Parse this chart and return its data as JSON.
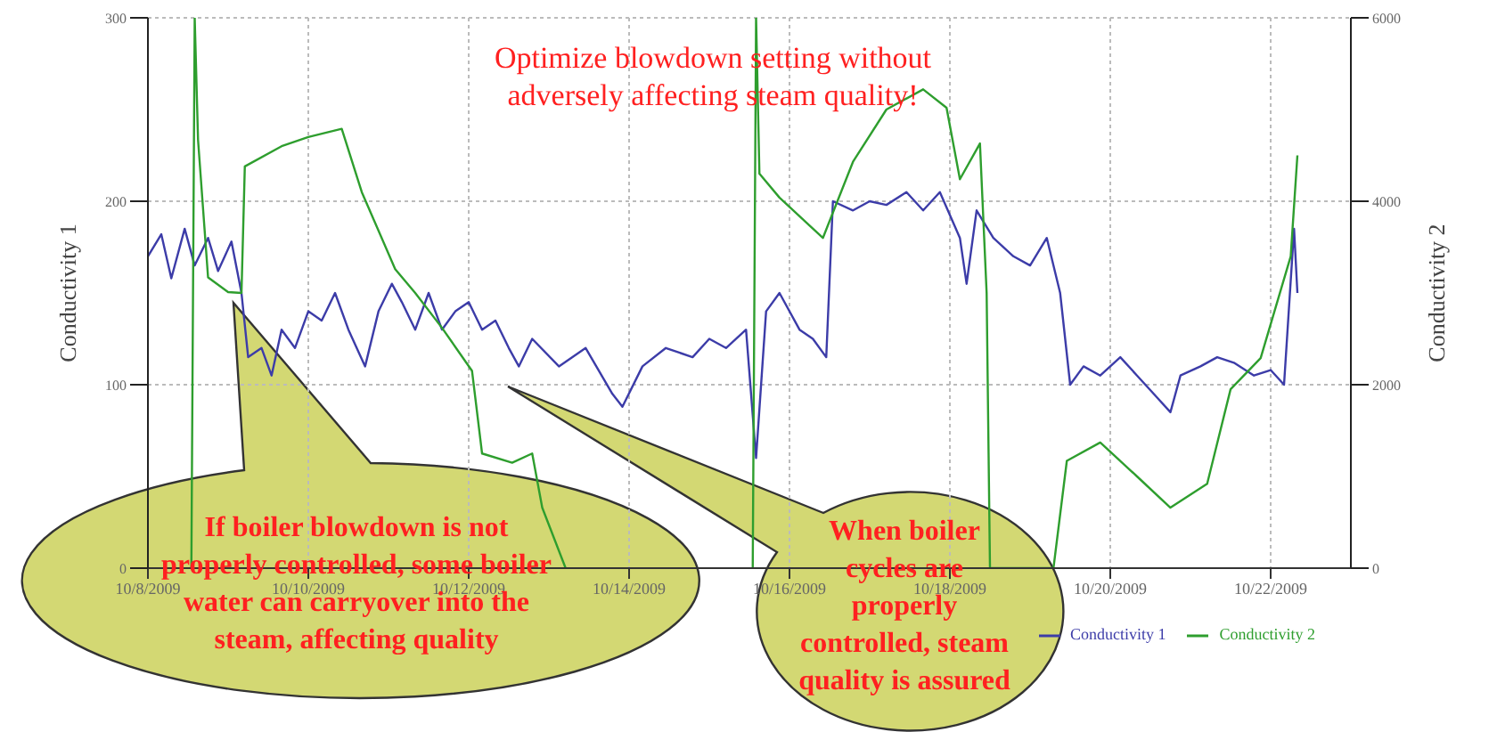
{
  "chart_data": {
    "type": "line",
    "annotations": [
      "Optimize blowdown setting without adversely affecting steam quality!",
      "If boiler blowdown is not properly controlled, some boiler water can carryover into the steam, affecting quality",
      "When boiler cycles are properly controlled, steam quality is assured"
    ],
    "ylabel": "Conductivity 1",
    "y2label": "Conductivity 2",
    "xlim": [
      "2009-10-08",
      "2009-10-23"
    ],
    "xticks": [
      {
        "value": "2009-10-08",
        "label": "10/8/2009"
      },
      {
        "value": "2009-10-10",
        "label": "10/10/2009"
      },
      {
        "value": "2009-10-12",
        "label": "10/12/2009"
      },
      {
        "value": "2009-10-14",
        "label": "10/14/2009"
      },
      {
        "value": "2009-10-16",
        "label": "10/16/2009"
      },
      {
        "value": "2009-10-18",
        "label": "10/18/2009"
      },
      {
        "value": "2009-10-20",
        "label": "10/20/2009"
      },
      {
        "value": "2009-10-22",
        "label": "10/22/2009"
      }
    ],
    "ylim": [
      0,
      300
    ],
    "yticks": [
      0,
      100,
      200,
      300
    ],
    "y2lim": [
      0,
      6000
    ],
    "y2ticks": [
      0,
      2000,
      4000,
      6000
    ],
    "grid": true,
    "legend": "bottom right",
    "series": [
      {
        "name": "Conductivity 1",
        "color": "#3c3ca8",
        "x": [
          "2009-10-08T00:00",
          "2009-10-08T04:00",
          "2009-10-08T07:00",
          "2009-10-08T11:00",
          "2009-10-08T14:00",
          "2009-10-08T18:00",
          "2009-10-08T21:00",
          "2009-10-09T01:00",
          "2009-10-09T04:00",
          "2009-10-09T06:00",
          "2009-10-09T10:00",
          "2009-10-09T13:00",
          "2009-10-09T16:00",
          "2009-10-09T20:00",
          "2009-10-10T00:00",
          "2009-10-10T04:00",
          "2009-10-10T08:00",
          "2009-10-10T12:00",
          "2009-10-10T15:00",
          "2009-10-10T17:00",
          "2009-10-10T21:00",
          "2009-10-11T01:00",
          "2009-10-11T04:00",
          "2009-10-11T08:00",
          "2009-10-11T12:00",
          "2009-10-11T16:00",
          "2009-10-11T20:00",
          "2009-10-12T00:00",
          "2009-10-12T04:00",
          "2009-10-12T08:00",
          "2009-10-12T12:00",
          "2009-10-12T15:00",
          "2009-10-12T19:00",
          "2009-10-13T03:00",
          "2009-10-13T11:00",
          "2009-10-13T19:00",
          "2009-10-13T22:00",
          "2009-10-14T04:00",
          "2009-10-14T11:00",
          "2009-10-14T19:00",
          "2009-10-15T00:00",
          "2009-10-15T05:00",
          "2009-10-15T11:00",
          "2009-10-15T14:00",
          "2009-10-15T17:00",
          "2009-10-15T21:00",
          "2009-10-16T03:00",
          "2009-10-16T07:00",
          "2009-10-16T11:00",
          "2009-10-16T13:00",
          "2009-10-16T19:00",
          "2009-10-17T00:00",
          "2009-10-17T05:00",
          "2009-10-17T11:00",
          "2009-10-17T16:00",
          "2009-10-17T21:00",
          "2009-10-18T03:00",
          "2009-10-18T05:00",
          "2009-10-18T08:00",
          "2009-10-18T13:00",
          "2009-10-18T19:00",
          "2009-10-19T00:00",
          "2009-10-19T05:00",
          "2009-10-19T09:00",
          "2009-10-19T12:00",
          "2009-10-19T16:00",
          "2009-10-19T21:00",
          "2009-10-20T03:00",
          "2009-10-20T08:00",
          "2009-10-20T13:00",
          "2009-10-20T18:00",
          "2009-10-20T21:00",
          "2009-10-21T03:00",
          "2009-10-21T08:00",
          "2009-10-21T13:00",
          "2009-10-21T19:00",
          "2009-10-22T00:00",
          "2009-10-22T04:00",
          "2009-10-22T07:00",
          "2009-10-22T08:00"
        ],
        "values": [
          170,
          182,
          158,
          185,
          165,
          180,
          162,
          178,
          150,
          115,
          120,
          105,
          130,
          120,
          140,
          135,
          150,
          130,
          118,
          110,
          140,
          155,
          145,
          130,
          150,
          130,
          140,
          145,
          130,
          135,
          120,
          110,
          125,
          110,
          120,
          95,
          88,
          110,
          120,
          115,
          125,
          120,
          130,
          60,
          140,
          150,
          130,
          125,
          115,
          200,
          195,
          200,
          198,
          205,
          195,
          205,
          180,
          155,
          195,
          180,
          170,
          165,
          180,
          150,
          100,
          110,
          105,
          115,
          105,
          95,
          85,
          105,
          110,
          115,
          112,
          105,
          108,
          100,
          185,
          150
        ]
      },
      {
        "name": "Conductivity 2",
        "color": "#2e9e2e",
        "axis": "y2",
        "x": [
          "2009-10-08T13:00",
          "2009-10-08T14:00",
          "2009-10-08T15:00",
          "2009-10-08T18:00",
          "2009-10-09T00:00",
          "2009-10-09T04:00",
          "2009-10-09T05:00",
          "2009-10-09T16:00",
          "2009-10-10T00:00",
          "2009-10-10T10:00",
          "2009-10-10T16:00",
          "2009-10-11T02:00",
          "2009-10-11T08:00",
          "2009-10-11T16:00",
          "2009-10-12T01:00",
          "2009-10-12T04:00",
          "2009-10-12T13:00",
          "2009-10-12T19:00",
          "2009-10-12T22:00",
          "2009-10-13T05:00",
          "2009-10-14T00:00",
          "2009-10-15T13:00",
          "2009-10-15T14:00",
          "2009-10-15T15:00",
          "2009-10-15T21:00",
          "2009-10-16T10:00",
          "2009-10-16T19:00",
          "2009-10-17T05:00",
          "2009-10-17T16:00",
          "2009-10-17T23:00",
          "2009-10-18T03:00",
          "2009-10-18T09:00",
          "2009-10-18T11:00",
          "2009-10-18T12:00",
          "2009-10-19T07:00",
          "2009-10-19T11:00",
          "2009-10-19T21:00",
          "2009-10-20T08:00",
          "2009-10-20T18:00",
          "2009-10-21T05:00",
          "2009-10-21T12:00",
          "2009-10-21T21:00",
          "2009-10-22T06:00",
          "2009-10-22T08:00"
        ],
        "values": [
          0,
          6000,
          4670,
          3170,
          3010,
          3000,
          4380,
          4600,
          4700,
          4790,
          4100,
          3260,
          3000,
          2620,
          2150,
          1250,
          1150,
          1250,
          660,
          0,
          null,
          0,
          6000,
          4300,
          4040,
          3600,
          4430,
          5000,
          5220,
          5020,
          4240,
          4630,
          3000,
          0,
          0,
          1170,
          1370,
          1000,
          660,
          920,
          1950,
          2290,
          3400,
          4500
        ]
      }
    ]
  }
}
